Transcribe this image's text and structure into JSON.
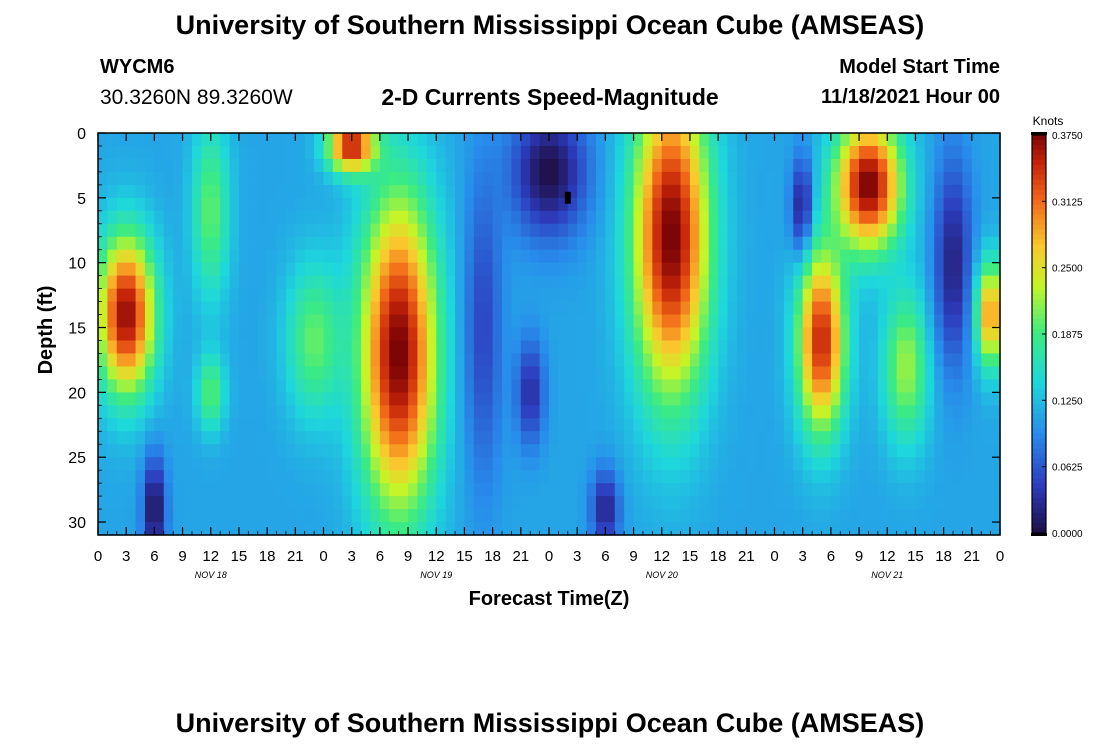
{
  "header": {
    "title": "University of Southern Mississippi Ocean Cube (AMSEAS)",
    "station_id": "WYCM6",
    "station_coords": "30.3260N  89.3260W",
    "plot_title": "2-D Currents Speed-Magnitude",
    "model_start_label": "Model Start Time",
    "model_start_value": "11/18/2021 Hour 00"
  },
  "footer": {
    "title": "University of Southern Mississippi Ocean Cube (AMSEAS)"
  },
  "chart_data": {
    "type": "heatmap",
    "title": "2-D Currents Speed-Magnitude",
    "xlabel": "Forecast Time(Z)",
    "ylabel": "Depth (ft)",
    "x_range_hours": [
      0,
      96
    ],
    "y_range_ft": [
      0,
      31
    ],
    "y_inverted": true,
    "x_tick_hours": [
      0,
      3,
      6,
      9,
      12,
      15,
      18,
      21,
      24,
      27,
      30,
      33,
      36,
      39,
      42,
      45,
      48,
      51,
      54,
      57,
      60,
      63,
      66,
      69,
      72,
      75,
      78,
      81,
      84,
      87,
      90,
      93,
      96
    ],
    "x_tick_labels": [
      "0",
      "3",
      "6",
      "9",
      "12",
      "15",
      "18",
      "21",
      "0",
      "3",
      "6",
      "9",
      "12",
      "15",
      "18",
      "21",
      "0",
      "3",
      "6",
      "9",
      "12",
      "15",
      "18",
      "21",
      "0",
      "3",
      "6",
      "9",
      "12",
      "15",
      "18",
      "21",
      "0"
    ],
    "y_ticks": [
      0,
      5,
      10,
      15,
      20,
      25,
      30
    ],
    "y_tick_labels": [
      "0",
      "5",
      "10",
      "15",
      "20",
      "25",
      "30"
    ],
    "day_labels": [
      {
        "label": "NOV 18",
        "hour": 12
      },
      {
        "label": "NOV 19",
        "hour": 36
      },
      {
        "label": "NOV 20",
        "hour": 60
      },
      {
        "label": "NOV 21",
        "hour": 84
      }
    ],
    "colorbar": {
      "units": "Knots",
      "min": 0.0,
      "max": 0.375,
      "ticks": [
        "0.3750",
        "0.3125",
        "0.2500",
        "0.1875",
        "0.1250",
        "0.0625",
        "0.0000"
      ],
      "tick_values": [
        0.375,
        0.3125,
        0.25,
        0.1875,
        0.125,
        0.0625,
        0.0
      ]
    },
    "features": [
      {
        "t": 3,
        "d": 14,
        "v": 0.37,
        "st": 3,
        "sd": 6
      },
      {
        "t": 12,
        "d": 6,
        "v": 0.2,
        "st": 2,
        "sd": 7
      },
      {
        "t": 12,
        "d": 20,
        "v": 0.2,
        "st": 1.5,
        "sd": 3
      },
      {
        "t": 6,
        "d": 29,
        "v": 0.0,
        "st": 1.2,
        "sd": 4
      },
      {
        "t": 23,
        "d": 16,
        "v": 0.2,
        "st": 3,
        "sd": 6
      },
      {
        "t": 27,
        "d": 1,
        "v": 0.36,
        "st": 2.5,
        "sd": 2
      },
      {
        "t": 32,
        "d": 17,
        "v": 0.38,
        "st": 4,
        "sd": 12
      },
      {
        "t": 48,
        "d": 3,
        "v": 0.0,
        "st": 4,
        "sd": 5
      },
      {
        "t": 46,
        "d": 20,
        "v": 0.03,
        "st": 1.5,
        "sd": 4
      },
      {
        "t": 54,
        "d": 29,
        "v": 0.02,
        "st": 1.5,
        "sd": 3
      },
      {
        "t": 61,
        "d": 8,
        "v": 0.38,
        "st": 4,
        "sd": 12
      },
      {
        "t": 75,
        "d": 6,
        "v": 0.0,
        "st": 1.2,
        "sd": 4
      },
      {
        "t": 77,
        "d": 16,
        "v": 0.35,
        "st": 2.5,
        "sd": 7
      },
      {
        "t": 82,
        "d": 4,
        "v": 0.38,
        "st": 3.5,
        "sd": 5
      },
      {
        "t": 86,
        "d": 18,
        "v": 0.22,
        "st": 2.5,
        "sd": 6
      },
      {
        "t": 91,
        "d": 10,
        "v": 0.02,
        "st": 2,
        "sd": 8
      },
      {
        "t": 95,
        "d": 14,
        "v": 0.3,
        "st": 1.5,
        "sd": 4
      },
      {
        "t": 41,
        "d": 15,
        "v": 0.05,
        "st": 2,
        "sd": 12
      }
    ],
    "base_value": 0.11,
    "marker": {
      "hour": 50,
      "depth_ft": 5
    }
  }
}
